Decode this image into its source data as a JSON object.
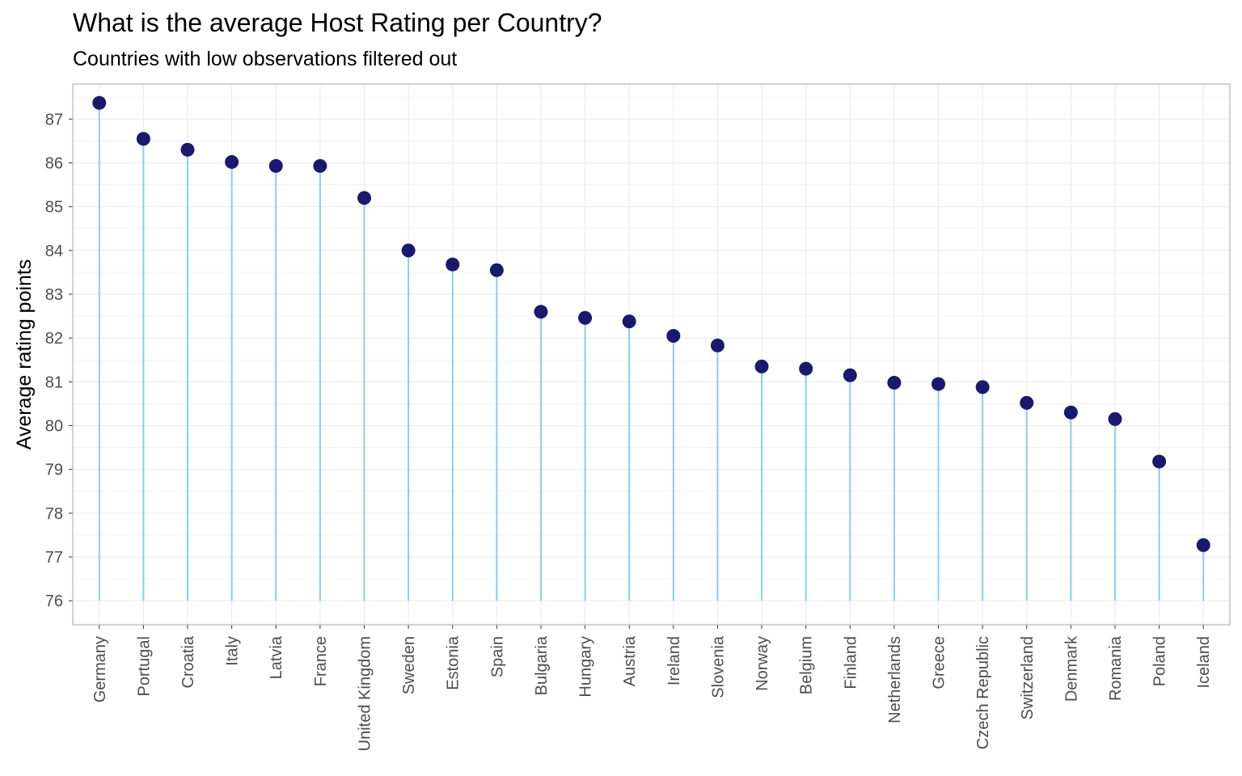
{
  "chart_data": {
    "type": "lollipop",
    "title": "What is the average Host Rating per Country?",
    "subtitle": "Countries with low observations filtered out",
    "xlabel": "",
    "ylabel": "Average rating points",
    "ylim": [
      75.45,
      87.8
    ],
    "baseline": 76,
    "yticks": [
      "76",
      "77",
      "78",
      "79",
      "80",
      "81",
      "82",
      "83",
      "84",
      "85",
      "86",
      "87"
    ],
    "categories": [
      "Germany",
      "Portugal",
      "Croatia",
      "Italy",
      "Latvia",
      "France",
      "United Kingdom",
      "Sweden",
      "Estonia",
      "Spain",
      "Bulgaria",
      "Hungary",
      "Austria",
      "Ireland",
      "Slovenia",
      "Norway",
      "Belgium",
      "Finland",
      "Netherlands",
      "Greece",
      "Czech Republic",
      "Switzerland",
      "Denmark",
      "Romania",
      "Poland",
      "Iceland"
    ],
    "values": [
      87.37,
      86.55,
      86.3,
      86.02,
      85.93,
      85.93,
      85.2,
      84.0,
      83.68,
      83.55,
      82.6,
      82.46,
      82.38,
      82.05,
      81.83,
      81.35,
      81.3,
      81.15,
      80.98,
      80.95,
      80.88,
      80.52,
      80.3,
      80.15,
      79.18,
      77.27
    ],
    "grid": true,
    "legend": "none",
    "colors": {
      "stem": "#87ceeb",
      "point": "#191970",
      "grid": "#ebebeb",
      "panel_border": "#b3b3b3",
      "tick_text": "#4d4d4d"
    }
  }
}
